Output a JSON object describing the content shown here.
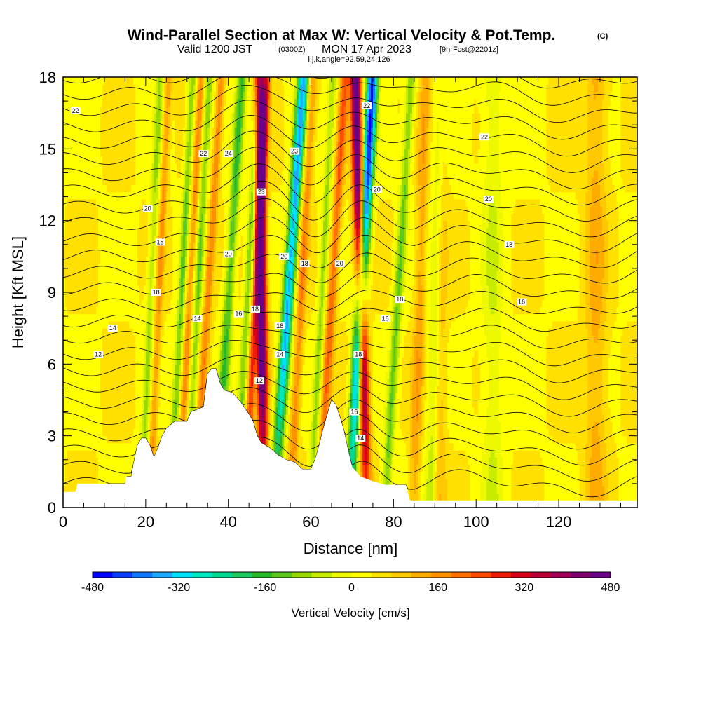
{
  "header": {
    "title_main": "Wind-Parallel Section at Max W: Vertical Velocity & Pot.Temp.",
    "title_unit": "(C)",
    "subtitle_a": "Valid 1200 JST",
    "subtitle_b": "(0300Z)",
    "subtitle_c": "MON 17 Apr 2023",
    "subtitle_d": "[9hrFcst@2201z]",
    "indices": "i,j,k,angle=92,59,24,126"
  },
  "chart_data": {
    "type": "heatmap",
    "title": "Wind-Parallel Section at Max W: Vertical Velocity & Pot.Temp.",
    "xlabel": "Distance [nm]",
    "ylabel": "Height [Kft MSL]",
    "xlim": [
      0,
      139
    ],
    "ylim": [
      0,
      18
    ],
    "x_ticks": [
      0,
      20,
      40,
      60,
      80,
      100,
      120
    ],
    "y_ticks": [
      0,
      3,
      6,
      9,
      12,
      15,
      18
    ],
    "colorbar": {
      "title": "Vertical Velocity [cm/s]",
      "tick_labels": [
        "-480",
        "-320",
        "-160",
        "0",
        "160",
        "320",
        "480"
      ],
      "tick_values": [
        -480,
        -320,
        -160,
        0,
        160,
        320,
        480
      ],
      "colors": [
        "#0000ff",
        "#0a3cff",
        "#1478ff",
        "#1ea8ff",
        "#00e0ff",
        "#00e8c0",
        "#00d890",
        "#1ec860",
        "#28b828",
        "#5ac81e",
        "#96d800",
        "#c8ec00",
        "#eef800",
        "#ffff00",
        "#ffe000",
        "#ffc800",
        "#ffac00",
        "#ff9000",
        "#ff7000",
        "#ff4800",
        "#ee1c00",
        "#d80018",
        "#bc0036",
        "#a00056",
        "#800070",
        "#6a0088"
      ]
    },
    "terrain_kft": [
      {
        "x": 0,
        "h": 0.65
      },
      {
        "x": 3,
        "h": 0.65
      },
      {
        "x": 3.5,
        "h": 1.0
      },
      {
        "x": 15,
        "h": 1.0
      },
      {
        "x": 15.2,
        "h": 1.3
      },
      {
        "x": 16.5,
        "h": 1.3
      },
      {
        "x": 17,
        "h": 1.8
      },
      {
        "x": 18,
        "h": 2.6
      },
      {
        "x": 19,
        "h": 2.9
      },
      {
        "x": 20,
        "h": 2.9
      },
      {
        "x": 21,
        "h": 2.6
      },
      {
        "x": 22,
        "h": 2.1
      },
      {
        "x": 23,
        "h": 2.5
      },
      {
        "x": 24,
        "h": 3.0
      },
      {
        "x": 25,
        "h": 3.3
      },
      {
        "x": 27,
        "h": 3.6
      },
      {
        "x": 30,
        "h": 3.6
      },
      {
        "x": 31,
        "h": 4.0
      },
      {
        "x": 34,
        "h": 4.2
      },
      {
        "x": 35,
        "h": 5.6
      },
      {
        "x": 36,
        "h": 5.8
      },
      {
        "x": 37,
        "h": 5.8
      },
      {
        "x": 38,
        "h": 5.2
      },
      {
        "x": 39,
        "h": 4.9
      },
      {
        "x": 41,
        "h": 4.8
      },
      {
        "x": 43,
        "h": 4.4
      },
      {
        "x": 45,
        "h": 3.9
      },
      {
        "x": 46,
        "h": 3.6
      },
      {
        "x": 47,
        "h": 3.0
      },
      {
        "x": 48,
        "h": 2.7
      },
      {
        "x": 50,
        "h": 2.5
      },
      {
        "x": 52,
        "h": 2.2
      },
      {
        "x": 54,
        "h": 2.0
      },
      {
        "x": 56,
        "h": 1.9
      },
      {
        "x": 58,
        "h": 1.6
      },
      {
        "x": 60,
        "h": 1.6
      },
      {
        "x": 61,
        "h": 2.0
      },
      {
        "x": 62,
        "h": 2.6
      },
      {
        "x": 63,
        "h": 3.3
      },
      {
        "x": 64,
        "h": 3.9
      },
      {
        "x": 65,
        "h": 4.5
      },
      {
        "x": 66,
        "h": 4.3
      },
      {
        "x": 67,
        "h": 3.8
      },
      {
        "x": 68,
        "h": 3.2
      },
      {
        "x": 69,
        "h": 2.4
      },
      {
        "x": 70,
        "h": 1.7
      },
      {
        "x": 72,
        "h": 1.3
      },
      {
        "x": 75,
        "h": 1.1
      },
      {
        "x": 78,
        "h": 0.95
      },
      {
        "x": 83,
        "h": 0.95
      },
      {
        "x": 84,
        "h": 0.3
      },
      {
        "x": 139,
        "h": 0.3
      }
    ],
    "updraft_bands": [
      {
        "x0": 21,
        "slope": 0.25,
        "amp": 120,
        "width": 0.9
      },
      {
        "x0": 28,
        "slope": 0.3,
        "amp": 130,
        "width": 0.9
      },
      {
        "x0": 32,
        "slope": 0.35,
        "amp": 140,
        "width": 1.0
      },
      {
        "x0": 44,
        "slope": 0.3,
        "amp": 220,
        "width": 1.0
      },
      {
        "x0": 48.5,
        "slope": -0.05,
        "amp": 470,
        "width": 1.2
      },
      {
        "x0": 55,
        "slope": 0.3,
        "amp": 140,
        "width": 1.1
      },
      {
        "x0": 62,
        "slope": 0.35,
        "amp": 180,
        "width": 1.1
      },
      {
        "x0": 73.5,
        "slope": -0.15,
        "amp": 460,
        "width": 1.3
      },
      {
        "x0": 85,
        "slope": 0.15,
        "amp": 100,
        "width": 1.3
      },
      {
        "x0": 91,
        "slope": 0.05,
        "amp": 80,
        "width": 1.5
      },
      {
        "x0": 129,
        "slope": 0.0,
        "amp": 90,
        "width": 2.5
      }
    ],
    "downdraft_bands": [
      {
        "x0": 19,
        "slope": 0.25,
        "amp": -110,
        "width": 1.0
      },
      {
        "x0": 26,
        "slope": 0.3,
        "amp": -150,
        "width": 1.0
      },
      {
        "x0": 30,
        "slope": 0.3,
        "amp": -140,
        "width": 1.0
      },
      {
        "x0": 37,
        "slope": 0.35,
        "amp": -180,
        "width": 1.3
      },
      {
        "x0": 42,
        "slope": 0.3,
        "amp": -140,
        "width": 1.0
      },
      {
        "x0": 51,
        "slope": 0.4,
        "amp": -380,
        "width": 1.4
      },
      {
        "x0": 60,
        "slope": 0.3,
        "amp": -120,
        "width": 1.0
      },
      {
        "x0": 69.5,
        "slope": 0.3,
        "amp": -470,
        "width": 1.4
      },
      {
        "x0": 78,
        "slope": 0.35,
        "amp": -150,
        "width": 1.2
      },
      {
        "x0": 89,
        "slope": 0.15,
        "amp": -90,
        "width": 1.6
      },
      {
        "x0": 104,
        "slope": 0.0,
        "amp": -70,
        "width": 2.5
      }
    ],
    "theta_contour_labels": [
      {
        "text": "22",
        "x": 3,
        "y": 16.6
      },
      {
        "text": "22",
        "x": 34,
        "y": 14.8
      },
      {
        "text": "24",
        "x": 40,
        "y": 14.8
      },
      {
        "text": "23",
        "x": 56,
        "y": 14.9
      },
      {
        "text": "22",
        "x": 73.5,
        "y": 16.8
      },
      {
        "text": "22",
        "x": 102,
        "y": 15.5
      },
      {
        "text": "23",
        "x": 48,
        "y": 13.2
      },
      {
        "text": "20",
        "x": 76,
        "y": 13.3
      },
      {
        "text": "20",
        "x": 20.5,
        "y": 12.5
      },
      {
        "text": "20",
        "x": 103,
        "y": 12.9
      },
      {
        "text": "18",
        "x": 23.5,
        "y": 11.1
      },
      {
        "text": "18",
        "x": 108,
        "y": 11.0
      },
      {
        "text": "20",
        "x": 40,
        "y": 10.6
      },
      {
        "text": "20",
        "x": 53.5,
        "y": 10.5
      },
      {
        "text": "18",
        "x": 58.5,
        "y": 10.2
      },
      {
        "text": "20",
        "x": 67,
        "y": 10.2
      },
      {
        "text": "18",
        "x": 22.5,
        "y": 9.0
      },
      {
        "text": "18",
        "x": 81.5,
        "y": 8.7
      },
      {
        "text": "16",
        "x": 111,
        "y": 8.6
      },
      {
        "text": "16",
        "x": 42.5,
        "y": 8.1
      },
      {
        "text": "18",
        "x": 46.5,
        "y": 8.3
      },
      {
        "text": "16",
        "x": 78,
        "y": 7.9
      },
      {
        "text": "14",
        "x": 32.5,
        "y": 7.9
      },
      {
        "text": "18",
        "x": 52.5,
        "y": 7.6
      },
      {
        "text": "14",
        "x": 12,
        "y": 7.5
      },
      {
        "text": "12",
        "x": 8.5,
        "y": 6.4
      },
      {
        "text": "14",
        "x": 52.5,
        "y": 6.4
      },
      {
        "text": "18",
        "x": 71.5,
        "y": 6.4
      },
      {
        "text": "12",
        "x": 47.5,
        "y": 5.3
      },
      {
        "text": "16",
        "x": 70.5,
        "y": 4.0
      },
      {
        "text": "14",
        "x": 72,
        "y": 2.9
      }
    ]
  }
}
